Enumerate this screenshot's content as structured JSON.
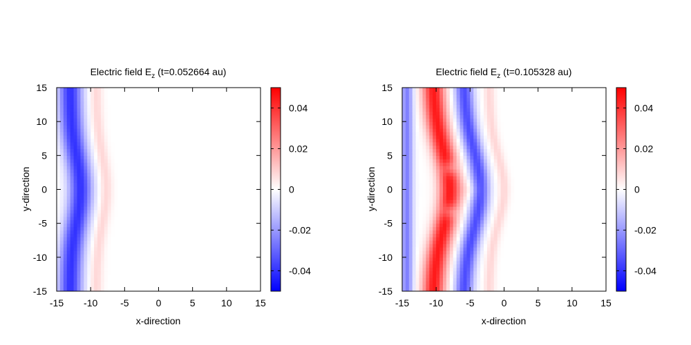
{
  "chart_data": [
    {
      "type": "heatmap",
      "title_main": "Electric field E",
      "title_sub": "z",
      "title_rest": " (t=0.052664 au)",
      "xlabel": "x-direction",
      "ylabel": "y-direction",
      "xlim": [
        -15,
        15
      ],
      "ylim": [
        -15,
        15
      ],
      "xticks": [
        "-15",
        "-10",
        "-5",
        "0",
        "5",
        "10",
        "15"
      ],
      "yticks": [
        "15",
        "10",
        "5",
        "0",
        "-5",
        "-10",
        "-15"
      ],
      "colorbar_range": [
        -0.05,
        0.05
      ],
      "colorbar_ticks": [
        "0.04",
        "0.02",
        "0",
        "-0.02",
        "-0.04"
      ],
      "colormap": {
        "negative": "#0000ff",
        "zero": "#ffffff",
        "positive": "#ff0000"
      },
      "time_au": 0.052664,
      "field_features": [
        {
          "kind": "plane-front",
          "sign": "negative",
          "x_center": -13,
          "x_width": 1.7,
          "peak": -0.04,
          "bend_depth": 1.5,
          "bend_halfwidth": 5
        },
        {
          "kind": "plane-front",
          "sign": "positive",
          "x_center": -9.2,
          "x_width": 0.9,
          "peak": 0.008,
          "bend_depth": 1.5,
          "bend_halfwidth": 5
        }
      ]
    },
    {
      "type": "heatmap",
      "title_main": "Electric field E",
      "title_sub": "z",
      "title_rest": " (t=0.105328 au)",
      "xlabel": "x-direction",
      "ylabel": "y-direction",
      "xlim": [
        -15,
        15
      ],
      "ylim": [
        -15,
        15
      ],
      "xticks": [
        "-15",
        "-10",
        "-5",
        "0",
        "5",
        "10",
        "15"
      ],
      "yticks": [
        "15",
        "10",
        "5",
        "0",
        "-5",
        "-10",
        "-15"
      ],
      "colorbar_range": [
        -0.05,
        0.05
      ],
      "colorbar_ticks": [
        "0.04",
        "0.02",
        "0",
        "-0.02",
        "-0.04"
      ],
      "colormap": {
        "negative": "#0000ff",
        "zero": "#ffffff",
        "positive": "#ff0000"
      },
      "time_au": 0.105328,
      "field_features": [
        {
          "kind": "plane-front",
          "sign": "negative",
          "x_center": -14.3,
          "x_width": 0.9,
          "peak": -0.025,
          "bend_depth": 0,
          "bend_halfwidth": 5
        },
        {
          "kind": "plane-front",
          "sign": "positive",
          "x_center": -10.5,
          "x_width": 1.6,
          "peak": 0.045,
          "bend_depth": 2.5,
          "bend_halfwidth": 6
        },
        {
          "kind": "plane-front",
          "sign": "negative",
          "x_center": -6,
          "x_width": 1.3,
          "peak": -0.035,
          "bend_depth": 2.5,
          "bend_halfwidth": 6
        },
        {
          "kind": "plane-front",
          "sign": "positive",
          "x_center": -2.2,
          "x_width": 0.8,
          "peak": 0.008,
          "bend_depth": 2.2,
          "bend_halfwidth": 5
        },
        {
          "kind": "spot",
          "sign": "negative",
          "x": -8,
          "y": 3.2,
          "r": 1.1,
          "peak": -0.015
        },
        {
          "kind": "spot",
          "sign": "negative",
          "x": -8,
          "y": -3.2,
          "r": 1.1,
          "peak": -0.015
        },
        {
          "kind": "spot",
          "sign": "positive",
          "x": -5,
          "y": 0,
          "r": 1.5,
          "peak": 0.006
        }
      ]
    }
  ]
}
